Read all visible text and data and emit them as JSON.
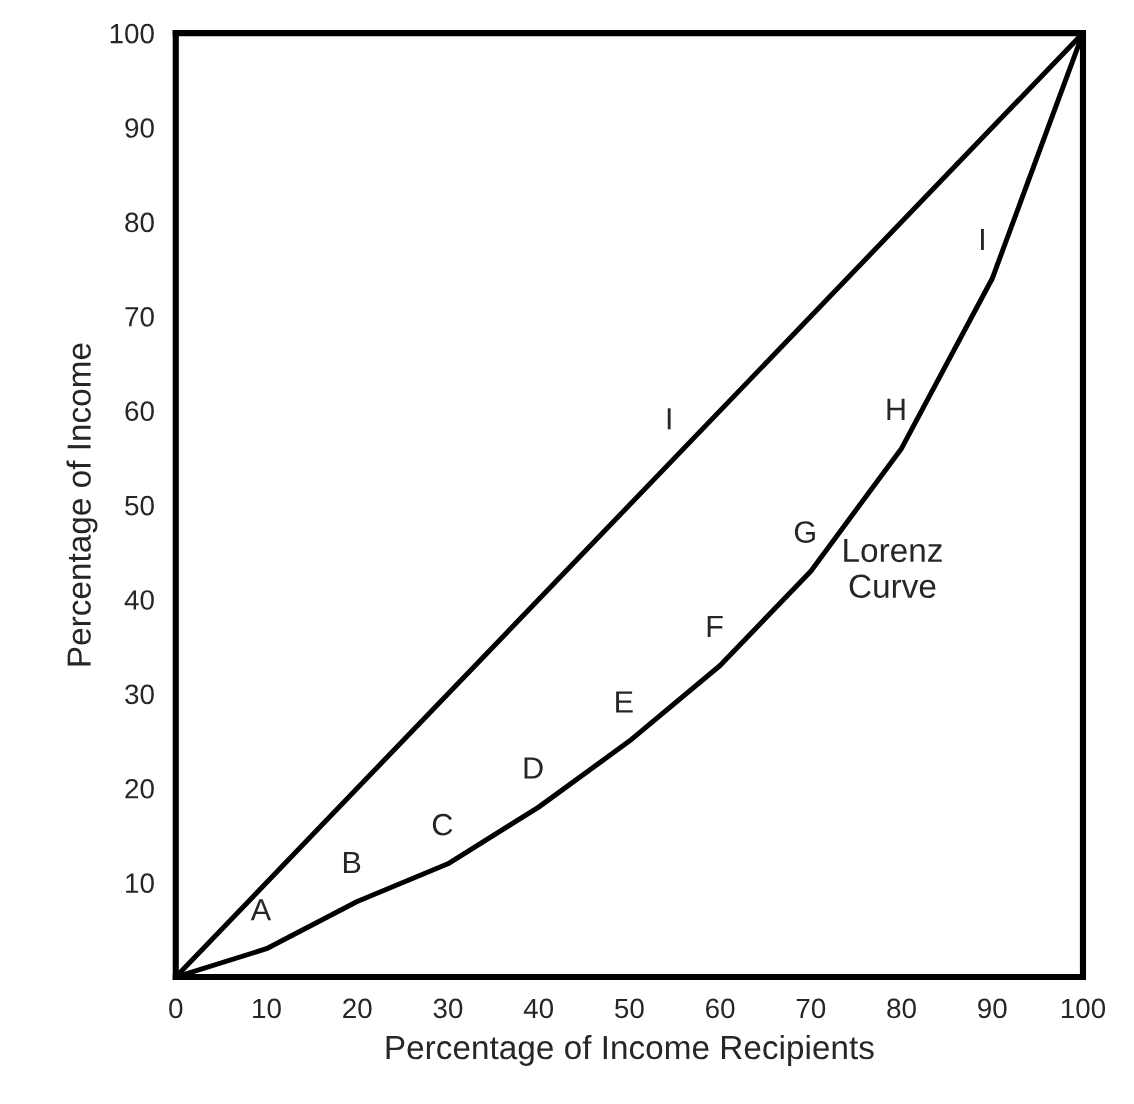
{
  "chart_data": {
    "type": "line",
    "xlabel": "Percentage of Income Recipients",
    "ylabel": "Percentage of Income",
    "series": [
      {
        "color": "#000000",
        "x": [
          0,
          100
        ],
        "values": [
          0,
          100
        ]
      },
      {
        "color": "#000000",
        "x": [
          0,
          10,
          20,
          30,
          40,
          50,
          60,
          70,
          80,
          90,
          100
        ],
        "values": [
          0,
          3,
          8,
          12,
          18,
          25,
          33,
          43,
          56,
          74,
          100
        ]
      }
    ],
    "xlim": [
      0,
      100
    ],
    "ylim": [
      0,
      100
    ],
    "xticks": [
      0,
      10,
      20,
      30,
      40,
      50,
      60,
      70,
      80,
      90,
      100
    ],
    "yticks": [
      10,
      20,
      30,
      40,
      50,
      60,
      70,
      80,
      90,
      100
    ],
    "annotations": [
      {
        "text": "A",
        "x": 10,
        "y": 3
      },
      {
        "text": "B",
        "x": 20,
        "y": 8
      },
      {
        "text": "C",
        "x": 30,
        "y": 12
      },
      {
        "text": "D",
        "x": 40,
        "y": 18
      },
      {
        "text": "E",
        "x": 50,
        "y": 25
      },
      {
        "text": "F",
        "x": 60,
        "y": 33
      },
      {
        "text": "G",
        "x": 70,
        "y": 43
      },
      {
        "text": "H",
        "x": 80,
        "y": 56
      },
      {
        "text": "I",
        "x": 90,
        "y": 74
      },
      {
        "text": "I",
        "x": 55,
        "y": 55
      },
      "Lorenz\nCurve"
    ],
    "grid": false,
    "legend": false
  }
}
